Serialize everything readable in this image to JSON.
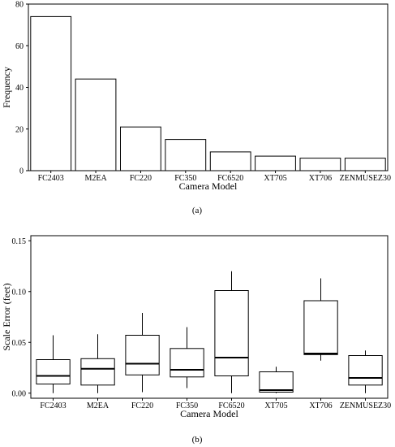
{
  "chart_data": [
    {
      "type": "bar",
      "panel_label": "(a)",
      "xlabel": "Camera Model",
      "ylabel": "Frequency",
      "ylim": [
        0,
        80
      ],
      "yticks": [
        "0",
        "20",
        "40",
        "60",
        "80"
      ],
      "categories": [
        "FC2403",
        "M2EA",
        "FC220",
        "FC350",
        "FC6520",
        "XT705",
        "XT706",
        "ZENMUSEZ30"
      ],
      "values": [
        74,
        44,
        21,
        15,
        9,
        7,
        6,
        6
      ],
      "grid": false,
      "bar_fill": "#ffffff",
      "bar_stroke": "#000000"
    },
    {
      "type": "box",
      "panel_label": "(b)",
      "xlabel": "Camera Model",
      "ylabel": "Scale Error (feet)",
      "ylim": [
        -0.005,
        0.155
      ],
      "yticks": [
        "0.00",
        "0.05",
        "0.10",
        "0.15"
      ],
      "ytick_values": [
        0.0,
        0.05,
        0.1,
        0.15
      ],
      "categories": [
        "FC2403",
        "M2EA",
        "FC220",
        "FC350",
        "FC6520",
        "XT705",
        "XT706",
        "ZENMUSEZ30"
      ],
      "boxes": [
        {
          "min": 0.0,
          "q1": 0.009,
          "median": 0.017,
          "q3": 0.033,
          "max": 0.057
        },
        {
          "min": 0.0,
          "q1": 0.008,
          "median": 0.024,
          "q3": 0.034,
          "max": 0.058
        },
        {
          "min": 0.001,
          "q1": 0.018,
          "median": 0.029,
          "q3": 0.057,
          "max": 0.079
        },
        {
          "min": 0.005,
          "q1": 0.016,
          "median": 0.023,
          "q3": 0.044,
          "max": 0.065
        },
        {
          "min": 0.0,
          "q1": 0.017,
          "median": 0.035,
          "q3": 0.101,
          "max": 0.12
        },
        {
          "min": 0.0,
          "q1": 0.001,
          "median": 0.003,
          "q3": 0.021,
          "max": 0.026
        },
        {
          "min": 0.032,
          "q1": 0.038,
          "median": 0.039,
          "q3": 0.091,
          "max": 0.113
        },
        {
          "min": 0.0,
          "q1": 0.008,
          "median": 0.015,
          "q3": 0.037,
          "max": 0.042
        }
      ],
      "grid": false
    }
  ]
}
